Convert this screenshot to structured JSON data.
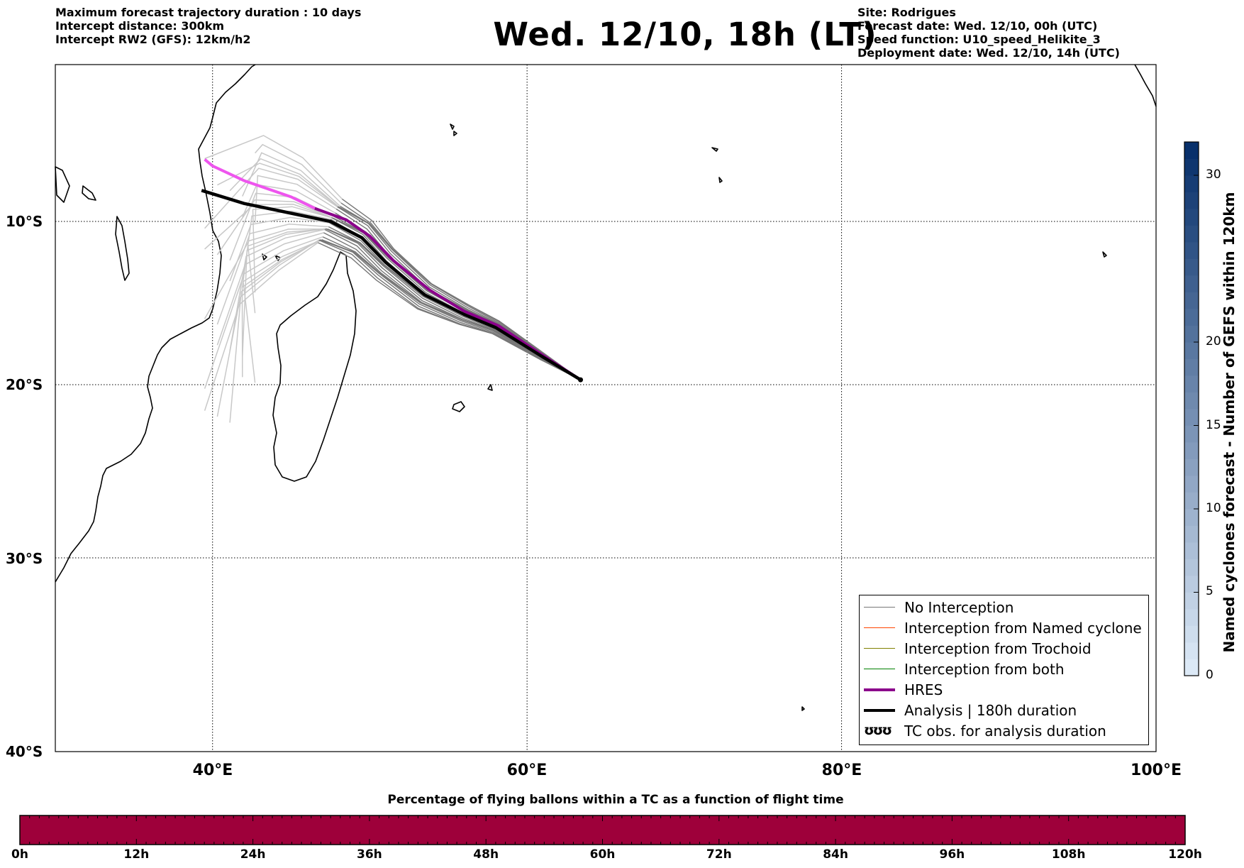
{
  "header": {
    "left": [
      "Maximum forecast trajectory duration : 10 days",
      "Intercept distance: 300km",
      "Intercept RW2 (GFS):  12km/h2"
    ],
    "title": "Wed. 12/10, 18h (LT)",
    "right": [
      "Site: Rodrigues",
      "Forecast date: Wed. 12/10, 00h (UTC)",
      "Speed function: U10_speed_Helikite_3",
      "Deployment date: Wed. 12/10, 14h (UTC)"
    ]
  },
  "map": {
    "lon_range": [
      30,
      100
    ],
    "lat_range": [
      -40,
      1
    ],
    "lat_labels": [
      "10°S",
      "20°S",
      "30°S",
      "40°S"
    ],
    "lon_labels": [
      "40°E",
      "60°E",
      "80°E",
      "100°E"
    ],
    "gridlines": true,
    "site": {
      "name": "Rodrigues",
      "lon": 63.4,
      "lat": -19.7
    }
  },
  "colors": {
    "no_interception": "#777777",
    "named_cyclone": "#ff4500",
    "trochoid": "#808000",
    "both": "#008000",
    "hres": "#8b008b",
    "hres_early": "#ee55ee",
    "analysis": "#000000",
    "early_trajectories": "#c8c8c8",
    "time_colorbar": "#9e003a"
  },
  "legend": {
    "placement": "lower-right",
    "items": [
      {
        "label": "No Interception",
        "style": "thin",
        "color": "#777777"
      },
      {
        "label": "Interception from Named cyclone",
        "style": "thin",
        "color": "#ff4500"
      },
      {
        "label": "Interception from Trochoid",
        "style": "thin",
        "color": "#808000"
      },
      {
        "label": "Interception from both",
        "style": "thin",
        "color": "#008000"
      },
      {
        "label": "HRES",
        "style": "thick",
        "color": "#8b008b"
      },
      {
        "label": "Analysis | 180h duration",
        "style": "thick",
        "color": "#000000"
      },
      {
        "label": "TC obs. for analysis duration",
        "style": "glyph",
        "glyph": "ʊʊʊ"
      }
    ]
  },
  "cyclone_colorbar": {
    "label": "Named cyclones forecast - Number of GEFS within 120km",
    "ticks": [
      "0",
      "5",
      "10",
      "15",
      "20",
      "30"
    ],
    "tick_values": [
      0,
      5,
      10,
      15,
      20,
      30
    ],
    "range": [
      0,
      32
    ],
    "color_from": "#dce9f6",
    "color_to": "#08306b"
  },
  "time_colorbar": {
    "title": "Percentage of flying ballons within a TC as a function of flight time",
    "labels": [
      "0h",
      "12h",
      "24h",
      "36h",
      "48h",
      "60h",
      "72h",
      "84h",
      "96h",
      "108h",
      "120h"
    ],
    "fill_value": 0
  },
  "trajectories": {
    "analysis": [
      [
        63.4,
        -19.7
      ],
      [
        61,
        -18.3
      ],
      [
        58,
        -16.5
      ],
      [
        56,
        -15.7
      ],
      [
        53.5,
        -14.5
      ],
      [
        51,
        -12.5
      ],
      [
        49.5,
        -11
      ],
      [
        47.5,
        -10
      ],
      [
        45,
        -9.5
      ],
      [
        42,
        -8.9
      ],
      [
        39.3,
        -8.1
      ]
    ],
    "hres": [
      [
        63.4,
        -19.7
      ],
      [
        61,
        -18.2
      ],
      [
        58.2,
        -16.4
      ],
      [
        56,
        -15.5
      ],
      [
        53.8,
        -14.2
      ],
      [
        51.5,
        -12.4
      ],
      [
        50,
        -10.9
      ],
      [
        48.5,
        -9.9
      ],
      [
        46.5,
        -9.2
      ],
      [
        45,
        -8.5
      ],
      [
        42,
        -7.5
      ],
      [
        40,
        -6.6
      ],
      [
        39.5,
        -6.2
      ]
    ]
  }
}
